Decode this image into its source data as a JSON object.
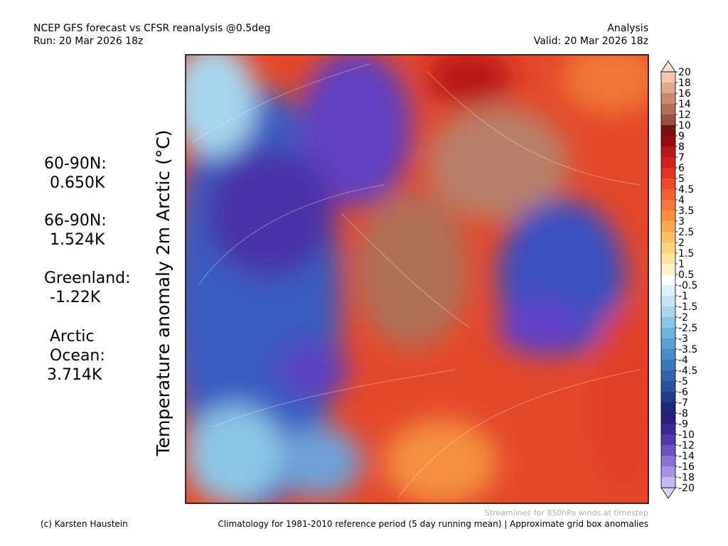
{
  "header": {
    "title": "NCEP GFS forecast vs CFSR reanalysis @0.5deg",
    "run": "Run: 20 Mar 2026 18z",
    "kind": "Analysis",
    "valid": "Valid: 20 Mar 2026 18z"
  },
  "axis_label": "Temperature anomaly 2m Arctic (°C)",
  "regions": [
    {
      "lines": [
        "60-90N:",
        "0.650K"
      ]
    },
    {
      "lines": [
        "66-90N:",
        "1.524K"
      ]
    },
    {
      "lines": [
        "Greenland:",
        "-1.22K"
      ]
    },
    {
      "lines": [
        "Arctic",
        "Ocean:",
        "3.714K"
      ]
    }
  ],
  "colorbar": {
    "labels": [
      20,
      18,
      16,
      14,
      12,
      10,
      9,
      8,
      7,
      6,
      5,
      4.5,
      4,
      3.5,
      3,
      2.5,
      2,
      1.5,
      1,
      0.5,
      -0.5,
      -1,
      -1.5,
      -2,
      -2.5,
      -3,
      -3.5,
      -4,
      -4.5,
      -5,
      -6,
      -7,
      -8,
      -9,
      -10,
      -12,
      -14,
      -16,
      -18,
      -20
    ],
    "colors": [
      "#f0c8b4",
      "#e0a890",
      "#c88a70",
      "#b07058",
      "#985040",
      "#7a1010",
      "#9a0a0a",
      "#b81818",
      "#d02020",
      "#e03525",
      "#ec4a2a",
      "#f06030",
      "#f47838",
      "#f89040",
      "#fba850",
      "#fcc060",
      "#fdd47a",
      "#fde49a",
      "#fef0c8",
      "#ffffff",
      "#e0f0fa",
      "#c4e4f4",
      "#a8d6ee",
      "#8cc6e6",
      "#70b2dc",
      "#5a9ed2",
      "#4a8ac8",
      "#3c76bc",
      "#3062b0",
      "#2a50a0",
      "#223a8c",
      "#1c2878",
      "#2a1c80",
      "#3c2898",
      "#5438b0",
      "#6c50c4",
      "#8870d4",
      "#a694e2",
      "#c4b8ee"
    ],
    "extend_colors": [
      "#f8e0d4",
      "#dcd4f6"
    ]
  },
  "footer": {
    "streamlines": "Streamlines for 850hPa winds at timestep",
    "credit": "(c) Karsten Haustein",
    "climatology": "Climatology for 1981-2010 reference period (5 day running mean) | Approximate grid box anomalies"
  }
}
